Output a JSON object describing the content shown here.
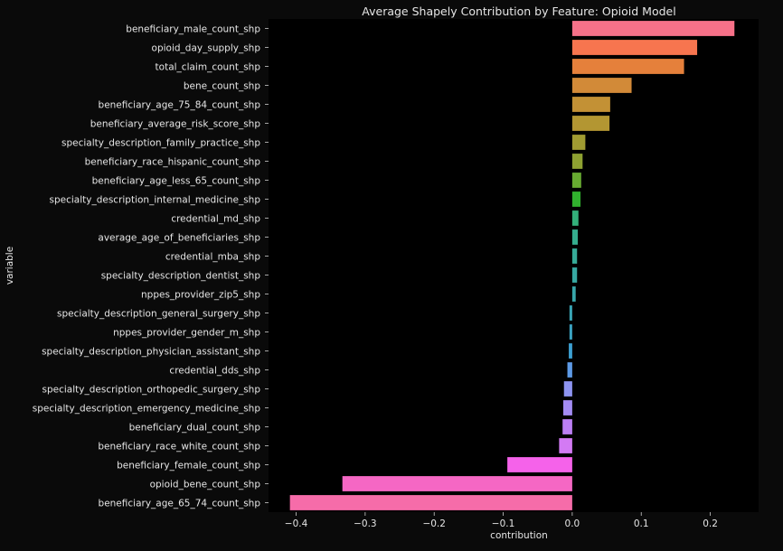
{
  "chart_data": {
    "type": "bar",
    "orientation": "horizontal",
    "title": "Average Shapely Contribution by Feature: Opioid Model",
    "xlabel": "contribution",
    "ylabel": "variable",
    "xlim": [
      -0.44,
      0.27
    ],
    "xticks": [
      -0.4,
      -0.3,
      -0.2,
      -0.1,
      0.0,
      0.1,
      0.2
    ],
    "xtick_labels": [
      "−0.4",
      "−0.3",
      "−0.2",
      "−0.1",
      "0.0",
      "0.1",
      "0.2"
    ],
    "grid": false,
    "categories": [
      "beneficiary_male_count_shp",
      "opioid_day_supply_shp",
      "total_claim_count_shp",
      "bene_count_shp",
      "beneficiary_age_75_84_count_shp",
      "beneficiary_average_risk_score_shp",
      "specialty_description_family_practice_shp",
      "beneficiary_race_hispanic_count_shp",
      "beneficiary_age_less_65_count_shp",
      "specialty_description_internal_medicine_shp",
      "credential_md_shp",
      "average_age_of_beneficiaries_shp",
      "credential_mba_shp",
      "specialty_description_dentist_shp",
      "nppes_provider_zip5_shp",
      "specialty_description_general_surgery_shp",
      "nppes_provider_gender_m_shp",
      "specialty_description_physician_assistant_shp",
      "credential_dds_shp",
      "specialty_description_orthopedic_surgery_shp",
      "specialty_description_emergency_medicine_shp",
      "beneficiary_dual_count_shp",
      "beneficiary_race_white_count_shp",
      "beneficiary_female_count_shp",
      "opioid_bene_count_shp",
      "beneficiary_age_65_74_count_shp"
    ],
    "values": [
      0.235,
      0.181,
      0.162,
      0.086,
      0.055,
      0.054,
      0.019,
      0.015,
      0.013,
      0.012,
      0.009,
      0.008,
      0.007,
      0.007,
      0.005,
      -0.004,
      -0.004,
      -0.005,
      -0.007,
      -0.012,
      -0.013,
      -0.014,
      -0.019,
      -0.094,
      -0.333,
      -0.409
    ],
    "colors": [
      "#f77189",
      "#f7754f",
      "#e5803b",
      "#d28a38",
      "#c39135",
      "#b39632",
      "#a19c32",
      "#8ea131",
      "#68ab31",
      "#31b12e",
      "#33b07a",
      "#35ad8e",
      "#36ab98",
      "#37a8a2",
      "#38a6aa",
      "#39a5b5",
      "#3ba3c2",
      "#3ca0d2",
      "#5d9ae6",
      "#8e94f1",
      "#a48cf4",
      "#bc7ff4",
      "#d37af4",
      "#f562ea",
      "#f567c4",
      "#f66ca9"
    ]
  }
}
